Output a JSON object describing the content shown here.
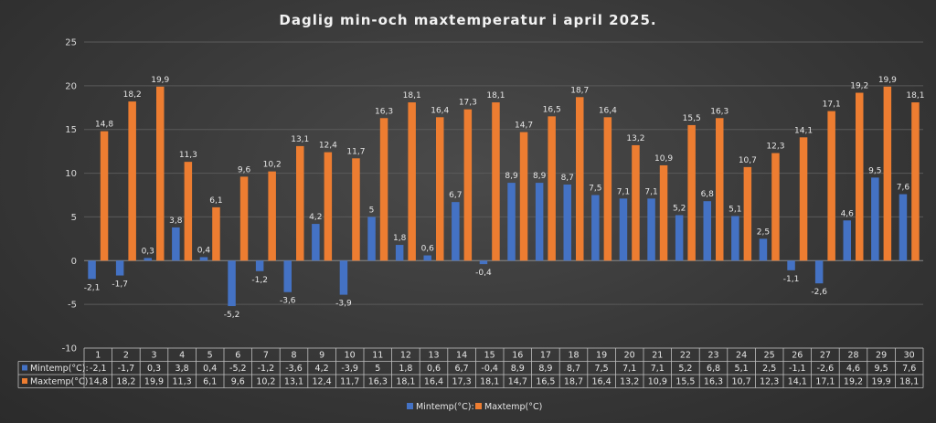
{
  "colors": {
    "min": "#4472c4",
    "max": "#ed7d31"
  },
  "chart_data": {
    "type": "bar",
    "title": "Daglig min-och maxtemperatur i april 2025.",
    "xlabel": "",
    "ylabel": "",
    "ylim": [
      -10,
      25
    ],
    "yticks": [
      -10,
      -5,
      0,
      5,
      10,
      15,
      20,
      25
    ],
    "grid": true,
    "legend": "bottom",
    "categories": [
      "1",
      "2",
      "3",
      "4",
      "5",
      "6",
      "7",
      "8",
      "9",
      "10",
      "11",
      "12",
      "13",
      "14",
      "15",
      "16",
      "17",
      "18",
      "19",
      "20",
      "21",
      "22",
      "23",
      "24",
      "25",
      "26",
      "27",
      "28",
      "29",
      "30"
    ],
    "series": [
      {
        "name": "Mintemp(°C):",
        "values": [
          -2.1,
          -1.7,
          0.3,
          3.8,
          0.4,
          -5.2,
          -1.2,
          -3.6,
          4.2,
          -3.9,
          5,
          1.8,
          0.6,
          6.7,
          -0.4,
          8.9,
          8.9,
          8.7,
          7.5,
          7.1,
          7.1,
          5.2,
          6.8,
          5.1,
          2.5,
          -1.1,
          -2.6,
          4.6,
          9.5,
          7.6
        ],
        "labels": [
          "-2,1",
          "-1,7",
          "0,3",
          "3,8",
          "0,4",
          "-5,2",
          "-1,2",
          "-3,6",
          "4,2",
          "-3,9",
          "5",
          "1,8",
          "0,6",
          "6,7",
          "-0,4",
          "8,9",
          "8,9",
          "8,7",
          "7,5",
          "7,1",
          "7,1",
          "5,2",
          "6,8",
          "5,1",
          "2,5",
          "-1,1",
          "-2,6",
          "4,6",
          "9,5",
          "7,6"
        ]
      },
      {
        "name": "Maxtemp(°C)",
        "values": [
          14.8,
          18.2,
          19.9,
          11.3,
          6.1,
          9.6,
          10.2,
          13.1,
          12.4,
          11.7,
          16.3,
          18.1,
          16.4,
          17.3,
          18.1,
          14.7,
          16.5,
          18.7,
          16.4,
          13.2,
          10.9,
          15.5,
          16.3,
          10.7,
          12.3,
          14.1,
          17.1,
          19.2,
          19.9,
          18.1
        ],
        "labels": [
          "14,8",
          "18,2",
          "19,9",
          "11,3",
          "6,1",
          "9,6",
          "10,2",
          "13,1",
          "12,4",
          "11,7",
          "16,3",
          "18,1",
          "16,4",
          "17,3",
          "18,1",
          "14,7",
          "16,5",
          "18,7",
          "16,4",
          "13,2",
          "10,9",
          "15,5",
          "16,3",
          "10,7",
          "12,3",
          "14,1",
          "17,1",
          "19,2",
          "19,9",
          "18,1"
        ]
      }
    ]
  }
}
